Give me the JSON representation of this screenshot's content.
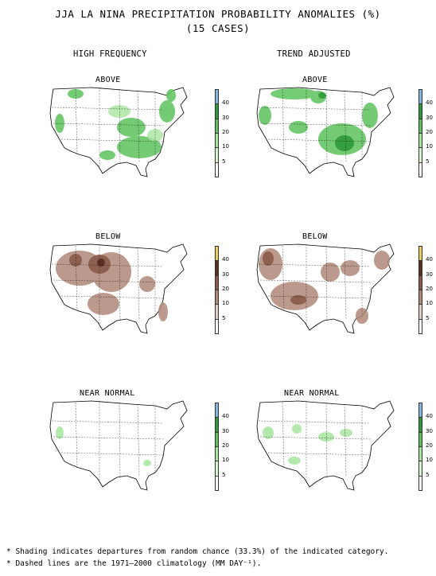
{
  "title": {
    "line1": "JJA LA NINA PRECIPITATION PROBABILITY ANOMALIES (%)",
    "line2": "(15 CASES)"
  },
  "columns": {
    "left": "HIGH FREQUENCY",
    "right": "TREND ADJUSTED"
  },
  "panels": {
    "hf_above": "ABOVE",
    "hf_below": "BELOW",
    "hf_near": "NEAR NORMAL",
    "ta_above": "ABOVE",
    "ta_below": "BELOW",
    "ta_near": "NEAR NORMAL"
  },
  "legend": {
    "labels": [
      "40",
      "30",
      "20",
      "10",
      "5"
    ],
    "wet_colors": [
      "#7fb8e0",
      "#2f9a3a",
      "#5cc35c",
      "#a8e6a0",
      "#d8f5d0",
      "#ffffff"
    ],
    "dry_colors": [
      "#e8d060",
      "#5a3020",
      "#8a5a4a",
      "#b08878",
      "#e0cfc8",
      "#ffffff"
    ]
  },
  "footnotes": {
    "line1": "* Shading indicates departures from random chance (33.3%) of the indicated category.",
    "line2": "* Dashed lines are the 1971–2000 climatology (MM DAY⁻¹)."
  }
}
